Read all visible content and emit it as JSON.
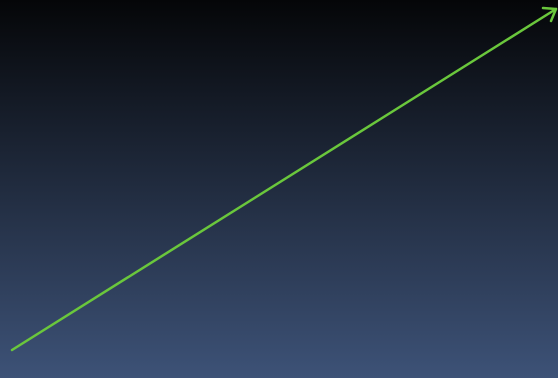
{
  "background": {
    "gradient_top": "#050608",
    "gradient_bottom": "#3d5277"
  },
  "arrow": {
    "color": "#6ac73c",
    "icon": "arrow-head-icon"
  }
}
